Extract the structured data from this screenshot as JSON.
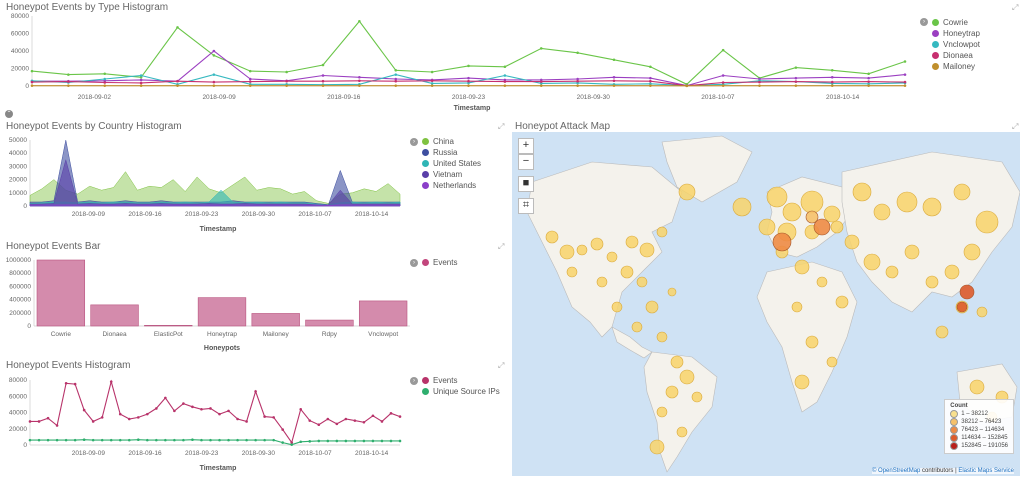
{
  "p1": {
    "title": "Honeypot Events by Type Histogram",
    "xlabel": "Timestamp",
    "yticks": [
      "80000",
      "60000",
      "40000",
      "20000",
      "0"
    ],
    "xticks": [
      "2018-09-02",
      "2018-09-09",
      "2018-09-16",
      "2018-09-23",
      "2018-09-30",
      "2018-10-07",
      "2018-10-14"
    ],
    "legend": [
      {
        "name": "Cowrie",
        "color": "#6ac548"
      },
      {
        "name": "Honeytrap",
        "color": "#9b3fc1"
      },
      {
        "name": "Vnclowpot",
        "color": "#36b9c0"
      },
      {
        "name": "Dionaea",
        "color": "#c72f6f"
      },
      {
        "name": "Mailoney",
        "color": "#c08f2c"
      }
    ]
  },
  "p2": {
    "title": "Honeypot Events by Country Histogram",
    "xlabel": "Timestamp",
    "yticks": [
      "50000",
      "40000",
      "30000",
      "20000",
      "10000",
      "0"
    ],
    "xticks": [
      "2018-09-09",
      "2018-09-16",
      "2018-09-23",
      "2018-09-30",
      "2018-10-07",
      "2018-10-14"
    ],
    "legend": [
      {
        "name": "China",
        "color": "#7fc241"
      },
      {
        "name": "Russia",
        "color": "#3e4fa0"
      },
      {
        "name": "United States",
        "color": "#2fb5b5"
      },
      {
        "name": "Vietnam",
        "color": "#5a3fa8"
      },
      {
        "name": "Netherlands",
        "color": "#8b3fc9"
      }
    ]
  },
  "p3": {
    "title": "Honeypot Events Bar",
    "xlabel": "Honeypots",
    "yticks": [
      "1000000",
      "800000",
      "600000",
      "400000",
      "200000",
      "0"
    ],
    "legend": [
      {
        "name": "Events",
        "color": "#c2457c"
      }
    ]
  },
  "p4": {
    "title": "Honeypot Events Histogram",
    "xlabel": "Timestamp",
    "yticks": [
      "80000",
      "60000",
      "40000",
      "20000",
      "0"
    ],
    "xticks": [
      "2018-09-09",
      "2018-09-16",
      "2018-09-23",
      "2018-09-30",
      "2018-10-07",
      "2018-10-14"
    ],
    "legend": [
      {
        "name": "Events",
        "color": "#b8336a"
      },
      {
        "name": "Unique Source IPs",
        "color": "#2fae6e"
      }
    ]
  },
  "map": {
    "title": "Honeypot Attack Map",
    "zoom_in": "+",
    "zoom_out": "−",
    "legend_title": "Count",
    "legend": [
      {
        "label": "1 – 38212",
        "color": "#f8e08e"
      },
      {
        "label": "38212 – 76423",
        "color": "#f6c16a"
      },
      {
        "label": "76423 – 114634",
        "color": "#ee8b45"
      },
      {
        "label": "114634 – 152845",
        "color": "#dd5b2b"
      },
      {
        "label": "152845 – 191056",
        "color": "#b8201b"
      }
    ],
    "attrib_osm": "© OpenStreetMap",
    "attrib_mid": " contributors | ",
    "attrib_ems": "Elastic Maps Service"
  },
  "chart_data": [
    {
      "type": "line",
      "title": "Honeypot Events by Type Histogram",
      "xlabel": "Timestamp",
      "ylabel": "",
      "ylim": [
        0,
        80000
      ],
      "x": [
        "2018-08-29",
        "2018-08-31",
        "2018-09-02",
        "2018-09-04",
        "2018-09-05",
        "2018-09-07",
        "2018-09-09",
        "2018-09-11",
        "2018-09-13",
        "2018-09-15",
        "2018-09-17",
        "2018-09-18",
        "2018-09-20",
        "2018-09-22",
        "2018-09-24",
        "2018-09-26",
        "2018-09-28",
        "2018-09-30",
        "2018-10-09",
        "2018-10-11",
        "2018-10-13",
        "2018-10-15",
        "2018-10-17",
        "2018-10-19",
        "2018-10-21"
      ],
      "series": [
        {
          "name": "Cowrie",
          "values": [
            17000,
            13000,
            14000,
            10000,
            67000,
            35000,
            17000,
            16000,
            24000,
            74000,
            18000,
            16000,
            23000,
            22000,
            43000,
            38000,
            30000,
            22000,
            2000,
            41000,
            9000,
            21000,
            18000,
            14000,
            28000
          ]
        },
        {
          "name": "Honeytrap",
          "values": [
            5500,
            5500,
            6000,
            7000,
            5500,
            40000,
            8000,
            6000,
            12000,
            10000,
            8000,
            7000,
            9000,
            7000,
            7000,
            8000,
            10000,
            9000,
            500,
            12000,
            8000,
            9000,
            10000,
            9000,
            13000
          ]
        },
        {
          "name": "Vnclowpot",
          "values": [
            6000,
            4000,
            8000,
            12000,
            2000,
            13000,
            2000,
            2000,
            1500,
            2000,
            13000,
            3000,
            3500,
            12000,
            3000,
            3500,
            2000,
            2500,
            500,
            2000,
            6000,
            5000,
            3000,
            2500,
            3500
          ]
        },
        {
          "name": "Dionaea",
          "values": [
            4500,
            5000,
            4000,
            3500,
            5500,
            4500,
            5000,
            5500,
            5500,
            6000,
            5500,
            6000,
            5500,
            5000,
            5000,
            5500,
            6000,
            5500,
            300,
            4000,
            4500,
            5000,
            4500,
            5000,
            4500
          ]
        },
        {
          "name": "Mailoney",
          "values": [
            400,
            400,
            400,
            400,
            400,
            400,
            400,
            400,
            400,
            400,
            400,
            400,
            400,
            400,
            400,
            400,
            400,
            400,
            200,
            400,
            400,
            400,
            400,
            400,
            400
          ]
        }
      ]
    },
    {
      "type": "area",
      "title": "Honeypot Events by Country Histogram",
      "xlabel": "Timestamp",
      "ylabel": "",
      "ylim": [
        0,
        50000
      ],
      "series": [
        {
          "name": "China",
          "values": [
            8000,
            13000,
            20000,
            12000,
            9000,
            15000,
            12000,
            14000,
            26000,
            12000,
            15000,
            14000,
            20000,
            11000,
            22000,
            13000,
            10000,
            16000,
            22000,
            12000,
            14000,
            13000,
            9000,
            11000,
            4000,
            2000,
            9000,
            10000,
            13000,
            11000,
            17000,
            9000
          ]
        },
        {
          "name": "Russia",
          "values": [
            3000,
            3000,
            4000,
            50000,
            3000,
            4000,
            3000,
            3000,
            4000,
            3000,
            3000,
            4000,
            3000,
            3000,
            3000,
            3000,
            3000,
            4000,
            3000,
            3000,
            3000,
            3000,
            3000,
            3000,
            2000,
            1000,
            27000,
            3000,
            3000,
            3000,
            3000,
            3000
          ]
        },
        {
          "name": "United States",
          "values": [
            2000,
            2500,
            3000,
            3000,
            2500,
            3000,
            2500,
            3000,
            3000,
            2500,
            2500,
            3000,
            2500,
            3000,
            2500,
            3000,
            12000,
            3000,
            2500,
            3000,
            2500,
            3000,
            2500,
            2500,
            1500,
            1000,
            2500,
            3000,
            2500,
            3000,
            2500,
            3000
          ]
        },
        {
          "name": "Vietnam",
          "values": [
            1500,
            1500,
            2000,
            35000,
            1500,
            2000,
            1500,
            1500,
            2000,
            1500,
            1500,
            2000,
            1500,
            1500,
            1500,
            2000,
            1500,
            1500,
            2000,
            1500,
            1500,
            1500,
            1500,
            1500,
            1000,
            800,
            12000,
            1500,
            1500,
            1500,
            1500,
            1500
          ]
        },
        {
          "name": "Netherlands",
          "values": [
            1000,
            1000,
            1000,
            1000,
            1000,
            1000,
            1000,
            1000,
            1000,
            1000,
            1000,
            1000,
            1000,
            1000,
            1000,
            1000,
            1000,
            1000,
            1000,
            1000,
            1000,
            1000,
            1000,
            1000,
            800,
            500,
            1000,
            1000,
            1000,
            1000,
            1000,
            1000
          ]
        }
      ]
    },
    {
      "type": "bar",
      "title": "Honeypot Events Bar",
      "xlabel": "Honeypots",
      "ylabel": "",
      "ylim": [
        0,
        1000000
      ],
      "categories": [
        "Cowrie",
        "Dionaea",
        "ElasticPot",
        "Honeytrap",
        "Mailoney",
        "Rdpy",
        "Vnclowpot"
      ],
      "series": [
        {
          "name": "Events",
          "values": [
            1020000,
            320000,
            10000,
            430000,
            190000,
            90000,
            380000
          ]
        }
      ]
    },
    {
      "type": "line",
      "title": "Honeypot Events Histogram",
      "xlabel": "Timestamp",
      "ylabel": "",
      "ylim": [
        0,
        80000
      ],
      "x": [
        "2018-09-02",
        "2018-09-03",
        "2018-09-04",
        "2018-09-05",
        "2018-09-06",
        "2018-09-07",
        "2018-09-08",
        "2018-09-09",
        "2018-09-10",
        "2018-09-11",
        "2018-09-12",
        "2018-09-13",
        "2018-09-14",
        "2018-09-15",
        "2018-09-16",
        "2018-09-17",
        "2018-09-18",
        "2018-09-19",
        "2018-09-20",
        "2018-09-21",
        "2018-09-22",
        "2018-09-23",
        "2018-09-24",
        "2018-09-25",
        "2018-09-26",
        "2018-09-27",
        "2018-09-28",
        "2018-09-29",
        "2018-09-30",
        "2018-10-09",
        "2018-10-10",
        "2018-10-11",
        "2018-10-12",
        "2018-10-13",
        "2018-10-14",
        "2018-10-15",
        "2018-10-16",
        "2018-10-17",
        "2018-10-18",
        "2018-10-19",
        "2018-10-20",
        "2018-10-21"
      ],
      "series": [
        {
          "name": "Events",
          "values": [
            29000,
            29000,
            33000,
            24000,
            76000,
            75000,
            43000,
            29000,
            34000,
            78000,
            38000,
            32000,
            34000,
            38000,
            45000,
            58000,
            42000,
            51000,
            47000,
            44000,
            45000,
            38000,
            42000,
            32000,
            29000,
            66000,
            35000,
            34000,
            19000,
            3000,
            44000,
            30000,
            25000,
            32000,
            26000,
            32000,
            30000,
            28000,
            36000,
            29000,
            39000,
            35000
          ]
        },
        {
          "name": "Unique Source IPs",
          "values": [
            6000,
            6000,
            6000,
            6000,
            6000,
            6000,
            6500,
            6000,
            6000,
            6000,
            6000,
            6000,
            6500,
            6000,
            6000,
            6000,
            6000,
            6000,
            6500,
            6000,
            6000,
            6000,
            6000,
            6000,
            6000,
            6000,
            6000,
            6000,
            3000,
            400,
            4000,
            4500,
            5000,
            5000,
            5000,
            5000,
            5000,
            5000,
            5000,
            5000,
            5000,
            5000
          ]
        }
      ]
    }
  ]
}
